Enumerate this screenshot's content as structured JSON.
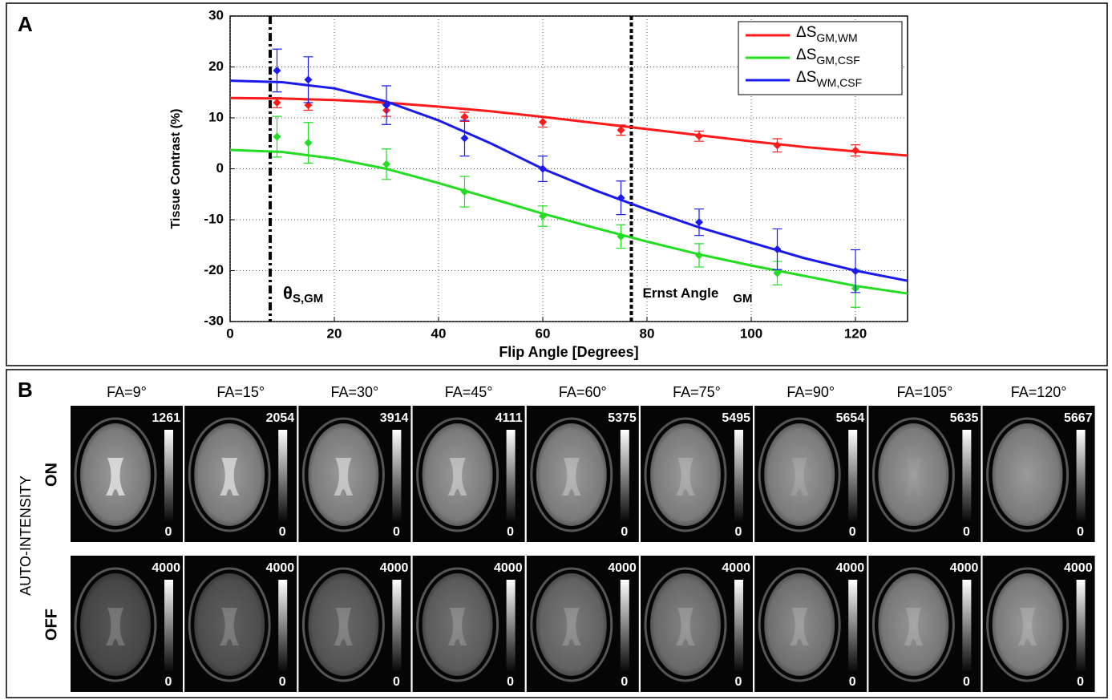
{
  "chart_data": {
    "type": "line",
    "panel_label": "A",
    "xlabel": "Flip Angle [Degrees]",
    "ylabel": "Tissue Contrast (%)",
    "xlim": [
      0,
      130
    ],
    "xticks": [
      0,
      20,
      40,
      60,
      80,
      100,
      120
    ],
    "ylim": [
      -30,
      30
    ],
    "yticks": [
      -30,
      -20,
      -10,
      0,
      10,
      20,
      30
    ],
    "grid": true,
    "legend": "upper right",
    "vlines": [
      {
        "x": 7.7,
        "style": "dashdot",
        "label": "θ",
        "label_sub": "S,GM"
      },
      {
        "x": 77,
        "style": "dashed",
        "label": "Ernst Angle",
        "label_sub": "GM"
      }
    ],
    "series": [
      {
        "name": "ΔS",
        "name_sub": "GM,WM",
        "color": "#ff1a1a",
        "x": [
          9,
          15,
          30,
          45,
          60,
          75,
          90,
          105,
          120
        ],
        "values": [
          13,
          12.5,
          11.5,
          10.2,
          9.2,
          7.6,
          6.4,
          4.6,
          3.6
        ],
        "errors": [
          1,
          1,
          1.2,
          0.9,
          1,
          1,
          1,
          1.3,
          1.1
        ],
        "fit_x": [
          0,
          10,
          20,
          30,
          40,
          50,
          60,
          70,
          80,
          90,
          100,
          110,
          120,
          130
        ],
        "fit": [
          13.9,
          13.8,
          13.5,
          13.0,
          12.2,
          11.3,
          10.2,
          9.0,
          7.8,
          6.6,
          5.4,
          4.3,
          3.4,
          2.6
        ]
      },
      {
        "name": "ΔS",
        "name_sub": "GM,CSF",
        "color": "#22dd22",
        "x": [
          9,
          15,
          30,
          45,
          60,
          75,
          90,
          105,
          120
        ],
        "values": [
          6.3,
          5.1,
          0.9,
          -4.5,
          -9.3,
          -13.3,
          -17,
          -20.5,
          -23.5
        ],
        "errors": [
          4,
          4,
          3,
          3,
          2,
          2.3,
          2.3,
          2.3,
          3.7
        ],
        "fit_x": [
          0,
          10,
          20,
          30,
          40,
          50,
          60,
          70,
          80,
          90,
          100,
          110,
          120,
          130
        ],
        "fit": [
          3.7,
          3.3,
          2,
          0,
          -2.8,
          -5.8,
          -8.8,
          -11.6,
          -14.3,
          -16.8,
          -19,
          -21,
          -23,
          -24.5
        ]
      },
      {
        "name": "ΔS",
        "name_sub": "WM,CSF",
        "color": "#1a1aee",
        "x": [
          9,
          15,
          30,
          45,
          60,
          75,
          90,
          105,
          120
        ],
        "values": [
          19.3,
          17.5,
          12.5,
          6,
          0,
          -5.7,
          -10.5,
          -15.8,
          -20.1
        ],
        "errors": [
          4.2,
          4.5,
          3.8,
          3.5,
          2.5,
          3.3,
          2.6,
          4,
          4.2
        ],
        "fit_x": [
          0,
          10,
          20,
          30,
          40,
          50,
          60,
          70,
          80,
          90,
          100,
          110,
          120,
          130
        ],
        "fit": [
          17.3,
          17.0,
          15.8,
          13.2,
          9.5,
          5.0,
          0,
          -4.2,
          -8,
          -11.5,
          -14.5,
          -17.5,
          -20,
          -22
        ]
      }
    ]
  },
  "panel_b": {
    "label": "B",
    "row_title": "AUTO-INTENSITY",
    "columns": [
      "FA=9°",
      "FA=15°",
      "FA=30°",
      "FA=45°",
      "FA=60°",
      "FA=75°",
      "FA=90°",
      "FA=105°",
      "FA=120°"
    ],
    "rows": [
      {
        "label": "ON",
        "max": [
          1261,
          2054,
          3914,
          4111,
          5375,
          5495,
          5654,
          5635,
          5667
        ],
        "min": 0
      },
      {
        "label": "OFF",
        "max": [
          4000,
          4000,
          4000,
          4000,
          4000,
          4000,
          4000,
          4000,
          4000
        ],
        "min": 0
      }
    ]
  }
}
